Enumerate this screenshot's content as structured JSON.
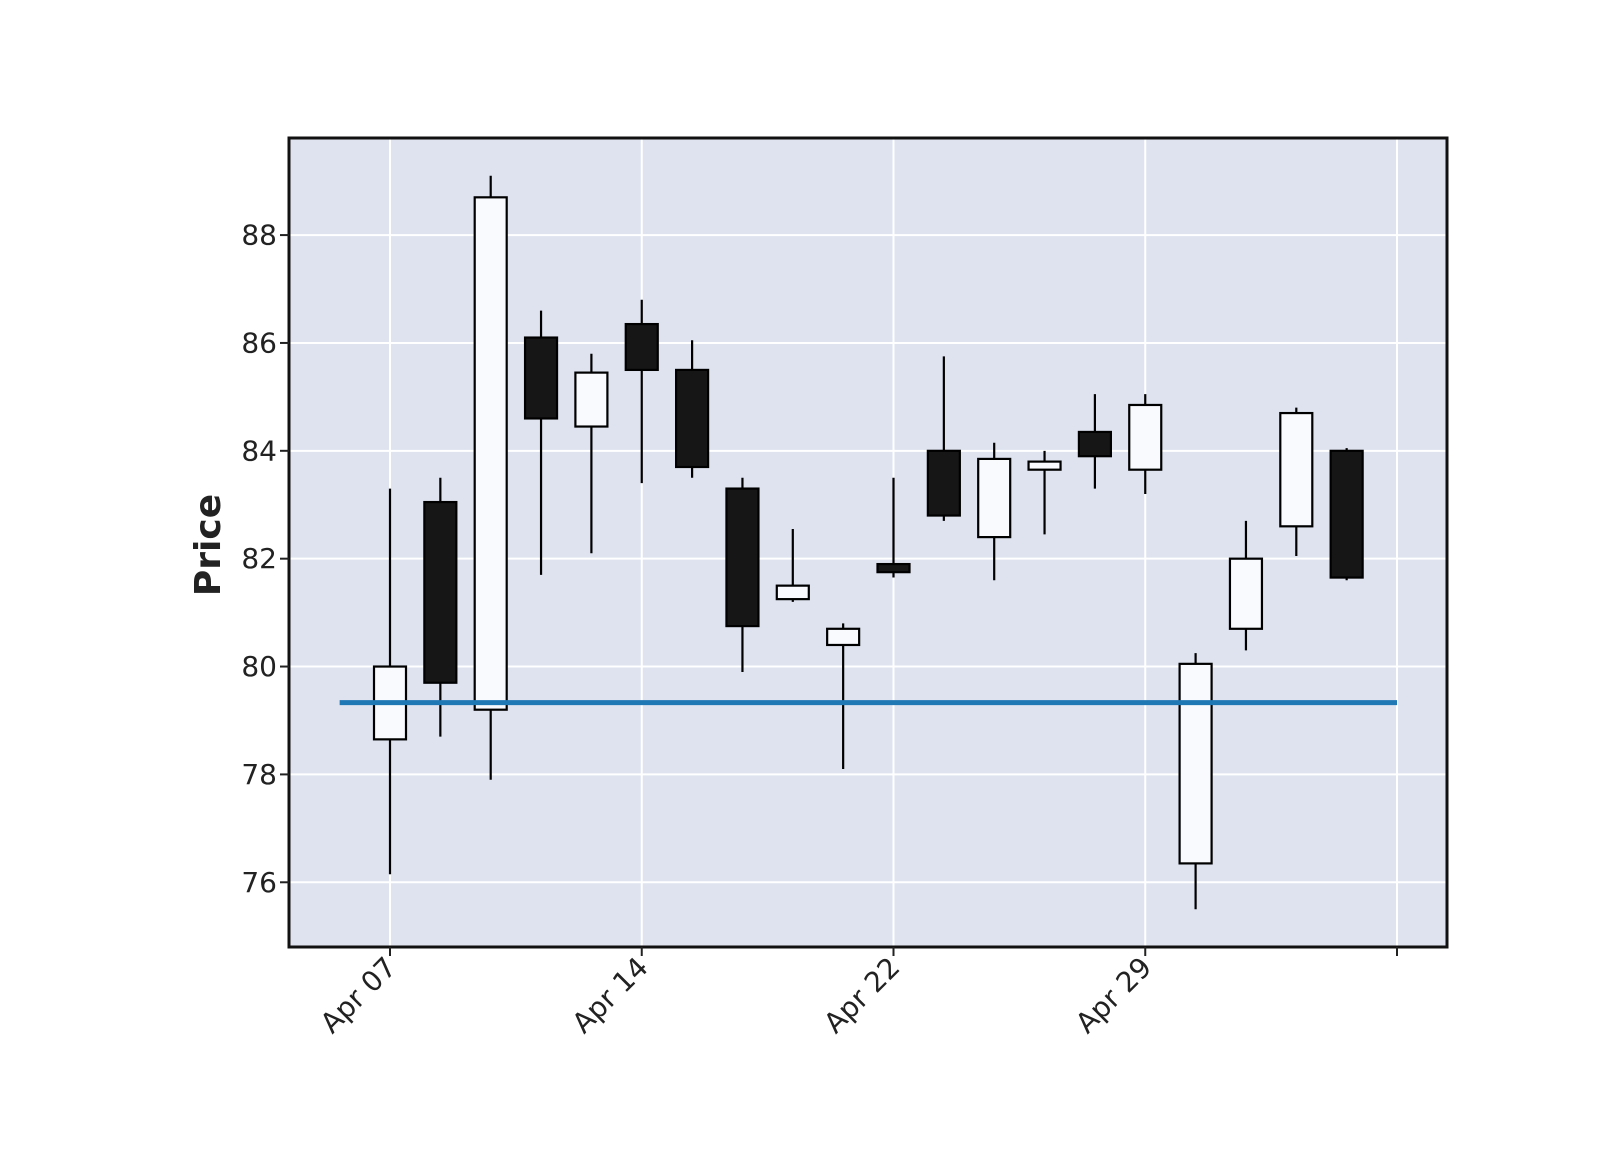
{
  "chart_data": {
    "type": "candlestick",
    "title": "",
    "xlabel": "",
    "ylabel": "Price",
    "ylim": [
      74.8,
      89.8
    ],
    "yticks": [
      76,
      78,
      80,
      82,
      84,
      86,
      88
    ],
    "x_tick_labels": [
      "Apr 07",
      "Apr 14",
      "Apr 22",
      "Apr 29"
    ],
    "x_tick_indices": [
      0,
      5,
      10,
      15,
      20
    ],
    "grid": true,
    "legend": "none",
    "colors": {
      "plot_background": "#dee3ef",
      "grid": "#ffffff",
      "up_body": "#f8fafd",
      "down_body": "#161616",
      "wick": "#000000",
      "reference_line": "#1f77b4"
    },
    "reference_line": {
      "value": 79.33,
      "from_index": -1,
      "to_index": 20
    },
    "candles": [
      {
        "open": 78.65,
        "high": 83.3,
        "low": 76.15,
        "close": 80.0
      },
      {
        "open": 83.05,
        "high": 83.5,
        "low": 78.7,
        "close": 79.7
      },
      {
        "open": 79.2,
        "high": 89.1,
        "low": 77.9,
        "close": 88.7
      },
      {
        "open": 86.1,
        "high": 86.6,
        "low": 81.7,
        "close": 84.6
      },
      {
        "open": 84.45,
        "high": 85.8,
        "low": 82.1,
        "close": 85.45
      },
      {
        "open": 86.35,
        "high": 86.8,
        "low": 83.4,
        "close": 85.5
      },
      {
        "open": 85.5,
        "high": 86.05,
        "low": 83.5,
        "close": 83.7
      },
      {
        "open": 83.3,
        "high": 83.5,
        "low": 79.9,
        "close": 80.75
      },
      {
        "open": 81.25,
        "high": 82.55,
        "low": 81.2,
        "close": 81.5
      },
      {
        "open": 80.4,
        "high": 80.8,
        "low": 78.1,
        "close": 80.7
      },
      {
        "open": 81.9,
        "high": 83.5,
        "low": 81.65,
        "close": 81.75
      },
      {
        "open": 84.0,
        "high": 85.75,
        "low": 82.7,
        "close": 82.8
      },
      {
        "open": 82.4,
        "high": 84.15,
        "low": 81.6,
        "close": 83.85
      },
      {
        "open": 83.65,
        "high": 84.0,
        "low": 82.45,
        "close": 83.8
      },
      {
        "open": 84.35,
        "high": 85.05,
        "low": 83.3,
        "close": 83.9
      },
      {
        "open": 83.65,
        "high": 85.05,
        "low": 83.2,
        "close": 84.85
      },
      {
        "open": 76.35,
        "high": 80.25,
        "low": 75.5,
        "close": 80.05
      },
      {
        "open": 80.7,
        "high": 82.7,
        "low": 80.3,
        "close": 82.0
      },
      {
        "open": 82.6,
        "high": 84.8,
        "low": 82.05,
        "close": 84.7
      },
      {
        "open": 84.0,
        "high": 84.05,
        "low": 81.6,
        "close": 81.65
      }
    ]
  }
}
